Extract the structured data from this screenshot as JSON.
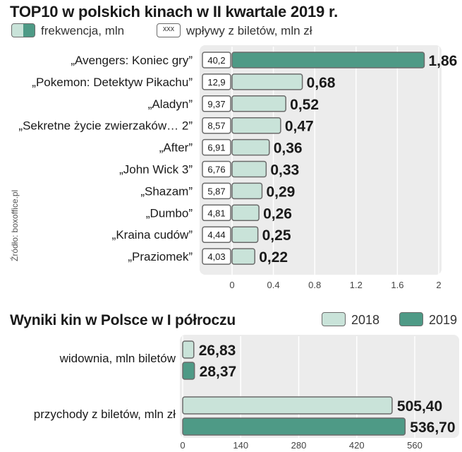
{
  "chart_data": [
    {
      "type": "bar",
      "title": "TOP10 w polskich kinach w II kwartale 2019 r.",
      "legend": {
        "attendance_label": "frekwencja, mln",
        "revenue_swatch_text": "XXX",
        "revenue_label": "wpływy z biletów, mln zł"
      },
      "categories": [
        "„Avengers: Koniec gry”",
        "„Pokemon: Detektyw Pikachu”",
        "„Aladyn”",
        "„Sekretne życie zwierzaków… 2”",
        "„After”",
        "„John Wick 3”",
        "„Shazam”",
        "„Dumbo”",
        "„Kraina cudów”",
        "„Praziomek”"
      ],
      "series": [
        {
          "name": "frekwencja, mln",
          "values": [
            1.86,
            0.68,
            0.52,
            0.47,
            0.36,
            0.33,
            0.29,
            0.26,
            0.25,
            0.22
          ]
        },
        {
          "name": "wpływy z biletów, mln zł",
          "values": [
            40.2,
            12.9,
            9.37,
            8.57,
            6.91,
            6.76,
            5.87,
            4.81,
            4.44,
            4.03
          ]
        }
      ],
      "value_labels": [
        "1,86",
        "0,68",
        "0,52",
        "0,47",
        "0,36",
        "0,33",
        "0,29",
        "0,26",
        "0,25",
        "0,22"
      ],
      "revenue_labels": [
        "40,2",
        "12,9",
        "9,37",
        "8,57",
        "6,91",
        "6,76",
        "5,87",
        "4,81",
        "4,44",
        "4,03"
      ],
      "xlim": [
        0,
        2
      ],
      "x_ticks": [
        "0",
        "0.4",
        "0.8",
        "1.2",
        "1.6",
        "2"
      ],
      "x_tick_values": [
        0,
        0.4,
        0.8,
        1.2,
        1.6,
        2
      ],
      "grid": true,
      "source": "Źródło: boxoffice.pl",
      "colors": {
        "bar_top": "#4e9a86",
        "bar": "#c9e3d9",
        "panel": "#ececec",
        "grid": "#ffffff"
      }
    },
    {
      "type": "bar",
      "title": "Wyniki kin w Polsce w I półroczu",
      "categories": [
        "widownia, mln biletów",
        "przychody z biletów, mln zł"
      ],
      "series": [
        {
          "name": "2018",
          "values": [
            26.83,
            505.4
          ]
        },
        {
          "name": "2019",
          "values": [
            28.37,
            536.7
          ]
        }
      ],
      "value_labels": [
        [
          "26,83",
          "505,40"
        ],
        [
          "28,37",
          "536,70"
        ]
      ],
      "xlim": [
        0,
        560
      ],
      "x_ticks": [
        "0",
        "140",
        "280",
        "420",
        "560"
      ],
      "x_tick_values": [
        0,
        140,
        280,
        420,
        560
      ],
      "grid": true,
      "legend_position": "top-right",
      "colors": {
        "2018": "#c9e3d9",
        "2019": "#4e9a86",
        "panel": "#ececec",
        "grid": "#ffffff"
      }
    }
  ]
}
